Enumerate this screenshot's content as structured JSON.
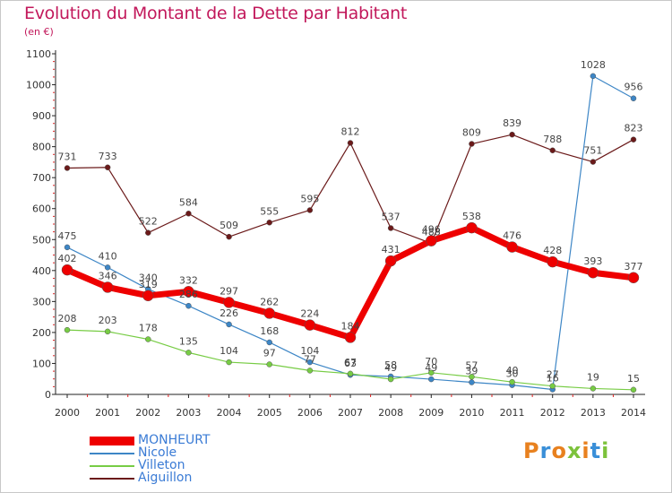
{
  "title": "Evolution du Montant de la Dette par Habitant",
  "subtitle": "(en €)",
  "logo": {
    "text": "Proxiti",
    "colors": [
      "#e8811f",
      "#3a8fd8",
      "#e8811f",
      "#7cc23b",
      "#e8811f",
      "#3a8fd8",
      "#7cc23b"
    ]
  },
  "chart_data": {
    "type": "line",
    "title": "Evolution du Montant de la Dette par Habitant",
    "ylabel": "(en €)",
    "xlabel": "",
    "ylim": [
      0,
      1100
    ],
    "yticks": [
      0,
      100,
      200,
      300,
      400,
      500,
      600,
      700,
      800,
      900,
      1000,
      1100
    ],
    "grid": false,
    "legend_position": "bottom-left",
    "x": [
      "2000",
      "2001",
      "2002",
      "2003",
      "2004",
      "2005",
      "2006",
      "2007",
      "2008",
      "2009",
      "2010",
      "2011",
      "2012",
      "2013",
      "2014"
    ],
    "series": [
      {
        "name": "MONHEURT",
        "color": "#ee0000",
        "values": [
          402,
          346,
          319,
          332,
          297,
          262,
          224,
          184,
          431,
          496,
          538,
          476,
          428,
          393,
          377
        ]
      },
      {
        "name": "Nicole",
        "color": "#3d86c6",
        "values": [
          475,
          410,
          340,
          286,
          226,
          168,
          104,
          63,
          58,
          49,
          39,
          30,
          16,
          1028,
          956
        ]
      },
      {
        "name": "Villeton",
        "color": "#77cc44",
        "values": [
          208,
          203,
          178,
          135,
          104,
          97,
          77,
          67,
          49,
          70,
          57,
          40,
          27,
          19,
          15
        ]
      },
      {
        "name": "Aiguillon",
        "color": "#6b1a1a",
        "values": [
          731,
          733,
          522,
          584,
          509,
          555,
          595,
          812,
          537,
          488,
          809,
          839,
          788,
          751,
          823
        ]
      }
    ]
  }
}
